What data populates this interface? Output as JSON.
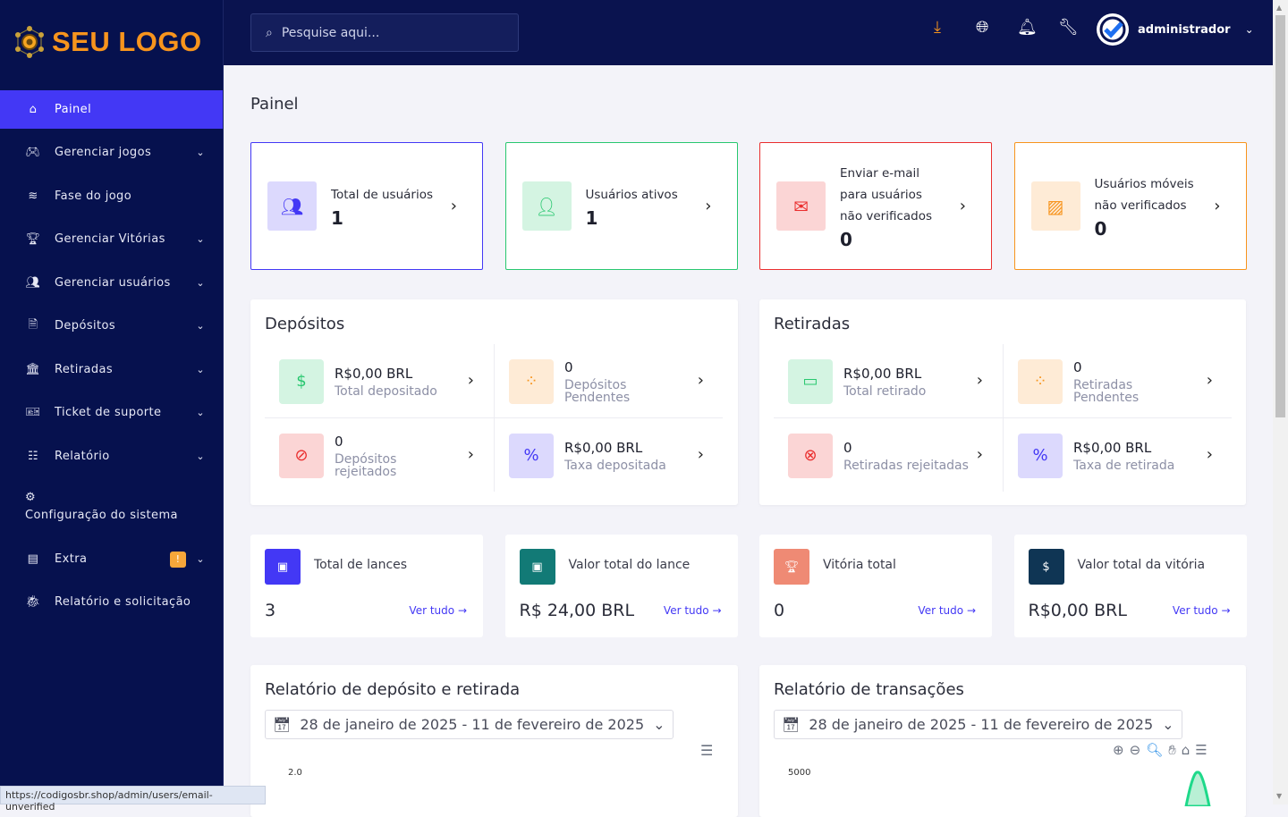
{
  "logo": {
    "text": "SEU LOGO"
  },
  "sidebar": {
    "items": [
      {
        "label": "Painel",
        "icon": "home-icon",
        "active": true,
        "chevron": false
      },
      {
        "label": "Gerenciar jogos",
        "icon": "gamepad-icon",
        "chevron": true
      },
      {
        "label": "Fase do jogo",
        "icon": "layers-icon",
        "chevron": false
      },
      {
        "label": "Gerenciar Vitórias",
        "icon": "trophy-icon",
        "chevron": true
      },
      {
        "label": "Gerenciar usuários",
        "icon": "users-icon",
        "chevron": true
      },
      {
        "label": "Depósitos",
        "icon": "deposit-icon",
        "chevron": true
      },
      {
        "label": "Retiradas",
        "icon": "bank-icon",
        "chevron": true
      },
      {
        "label": "Ticket de suporte",
        "icon": "ticket-icon",
        "chevron": true
      },
      {
        "label": "Relatório",
        "icon": "list-icon",
        "chevron": true
      },
      {
        "label": "Configuração do sistema",
        "icon": "settings-icon",
        "chevron": false
      },
      {
        "label": "Extra",
        "icon": "server-icon",
        "chevron": true,
        "badge": "!"
      },
      {
        "label": "Relatório e solicitação",
        "icon": "bug-icon",
        "chevron": false
      }
    ]
  },
  "topbar": {
    "search_placeholder": "Pesquise aqui...",
    "username": "administrador",
    "accent": "#f7941d"
  },
  "page": {
    "title": "Painel"
  },
  "top_cards": [
    {
      "label": "Total de usuários",
      "value": "1",
      "color": "#4338f5",
      "bg": "#dcd9fd"
    },
    {
      "label": "Usuários ativos",
      "value": "1",
      "color": "#28c76f",
      "bg": "#d4f4e2"
    },
    {
      "label": "Enviar e-mail para usuários não verificados",
      "value": "0",
      "color": "#ea2e2e",
      "bg": "#fbd5d5"
    },
    {
      "label": "Usuários móveis não verificados",
      "value": "0",
      "color": "#f7941d",
      "bg": "#feebd6"
    }
  ],
  "deposits": {
    "title": "Depósitos",
    "items": [
      {
        "value": "R$0,00 BRL",
        "label": "Total depositado"
      },
      {
        "value": "0",
        "label": "Depósitos Pendentes"
      },
      {
        "value": "0",
        "label": "Depósitos rejeitados"
      },
      {
        "value": "R$0,00 BRL",
        "label": "Taxa depositada"
      }
    ]
  },
  "withdrawals": {
    "title": "Retiradas",
    "items": [
      {
        "value": "R$0,00 BRL",
        "label": "Total retirado"
      },
      {
        "value": "0",
        "label": "Retiradas Pendentes"
      },
      {
        "value": "0",
        "label": "Retiradas rejeitadas"
      },
      {
        "value": "R$0,00 BRL",
        "label": "Taxa de retirada"
      }
    ]
  },
  "metric_cards": [
    {
      "label": "Total de lances",
      "value": "3",
      "link": "Ver tudo",
      "color": "#4338f5"
    },
    {
      "label": "Valor total do lance",
      "value": "R$ 24,00 BRL",
      "link": "Ver tudo",
      "color": "#127a76"
    },
    {
      "label": "Vitória total",
      "value": "0",
      "link": "Ver tudo",
      "color": "#ef8a74"
    },
    {
      "label": "Valor total da vitória",
      "value": "R$0,00 BRL",
      "link": "Ver tudo",
      "color": "#0f3554"
    }
  ],
  "reports": [
    {
      "title": "Relatório de depósito e retirada",
      "date_range": "28 de janeiro de 2025 - 11 de fevereiro de 2025",
      "y_top": "2.0"
    },
    {
      "title": "Relatório de transações",
      "date_range": "28 de janeiro de 2025 - 11 de fevereiro de 2025",
      "y_top": "5000"
    }
  ],
  "status_url": "https://codigosbr.shop/admin/users/email-unverified"
}
